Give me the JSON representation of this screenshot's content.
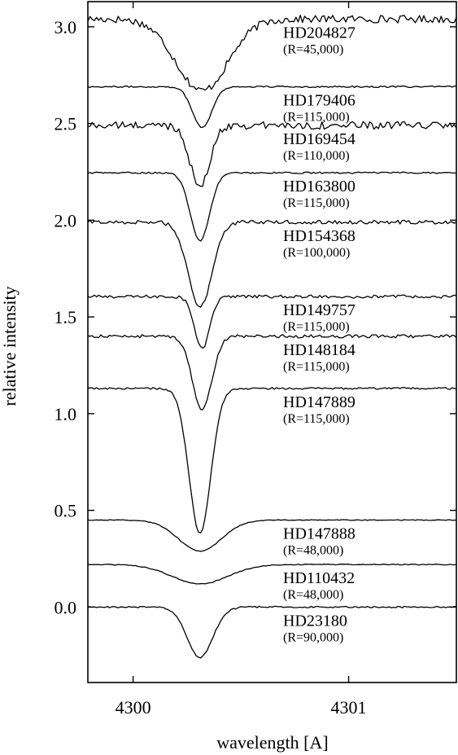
{
  "chart_data": {
    "type": "line",
    "xlabel": "wavelength [A]",
    "ylabel": "relative intensity",
    "xlim": [
      4299.79,
      4301.5
    ],
    "ylim": [
      -0.39,
      3.13
    ],
    "x_ticks": [
      4300,
      4301
    ],
    "x_tick_labels": [
      "4300",
      "4301"
    ],
    "y_ticks": [
      0.0,
      0.5,
      1.0,
      1.5,
      2.0,
      2.5,
      3.0
    ],
    "y_tick_labels": [
      "0.0",
      "0.5",
      "1.0",
      "1.5",
      "2.0",
      "2.5",
      "3.0"
    ],
    "grid": false,
    "series": [
      {
        "name": "HD204827",
        "resolution": "(R=45,000)",
        "continuum": 3.04,
        "center": 4300.32,
        "depth": 0.37,
        "width": 0.12,
        "noise": 0.02
      },
      {
        "name": "HD179406",
        "resolution": "(R=115,000)",
        "continuum": 2.69,
        "center": 4300.32,
        "depth": 0.21,
        "width": 0.045,
        "noise": 0.004
      },
      {
        "name": "HD169454",
        "resolution": "(R=110,000)",
        "continuum": 2.49,
        "center": 4300.31,
        "depth": 0.32,
        "width": 0.045,
        "noise": 0.02
      },
      {
        "name": "HD163800",
        "resolution": "(R=115,000)",
        "continuum": 2.245,
        "center": 4300.31,
        "depth": 0.35,
        "width": 0.045,
        "noise": 0.004
      },
      {
        "name": "HD154368",
        "resolution": "(R=100,000)",
        "continuum": 1.99,
        "center": 4300.31,
        "depth": 0.44,
        "width": 0.055,
        "noise": 0.01
      },
      {
        "name": "HD149757",
        "resolution": "(R=115,000)",
        "continuum": 1.605,
        "center": 4300.32,
        "depth": 0.27,
        "width": 0.035,
        "noise": 0.008
      },
      {
        "name": "HD148184",
        "resolution": "(R=115,000)",
        "continuum": 1.4,
        "center": 4300.32,
        "depth": 0.38,
        "width": 0.045,
        "noise": 0.008
      },
      {
        "name": "HD147889",
        "resolution": "(R=115,000)",
        "continuum": 1.13,
        "center": 4300.31,
        "depth": 0.75,
        "width": 0.05,
        "noise": 0.005
      },
      {
        "name": "HD147888",
        "resolution": "(R=48,000)",
        "continuum": 0.45,
        "center": 4300.31,
        "depth": 0.16,
        "width": 0.1,
        "noise": 0.002
      },
      {
        "name": "HD110432",
        "resolution": "(R=48,000)",
        "continuum": 0.22,
        "center": 4300.31,
        "depth": 0.1,
        "width": 0.13,
        "noise": 0.002
      },
      {
        "name": "HD23180",
        "resolution": "(R=90,000)",
        "continuum": 0.0,
        "center": 4300.31,
        "depth": 0.26,
        "width": 0.06,
        "noise": 0.004
      }
    ]
  }
}
